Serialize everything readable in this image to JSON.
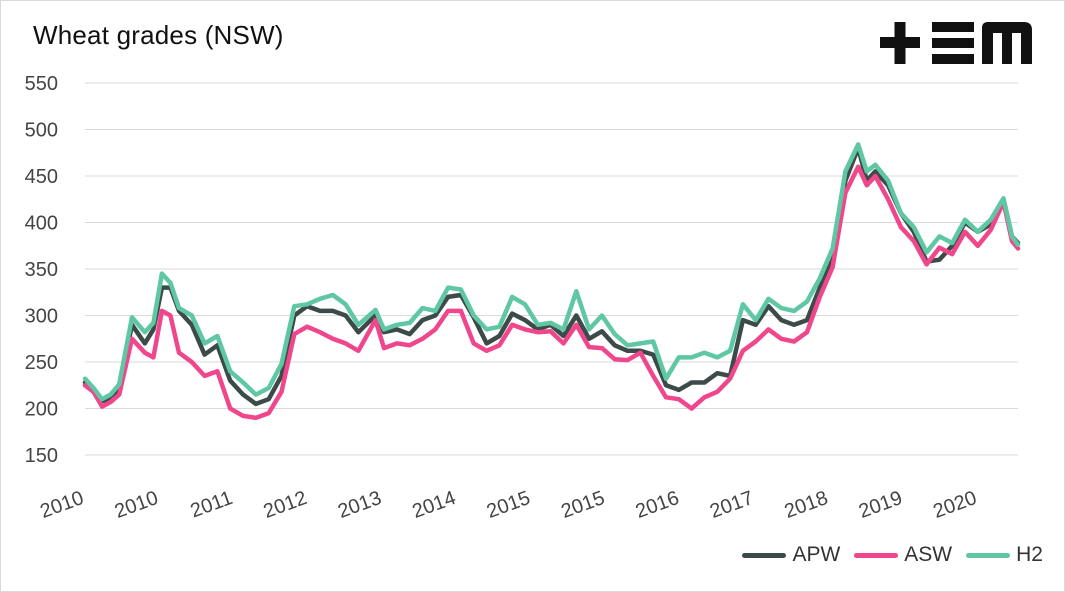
{
  "chart_data": {
    "type": "line",
    "title": "Wheat grades (NSW)",
    "xlabel": "",
    "ylabel": "",
    "ylim": [
      150,
      550
    ],
    "yticks": [
      150,
      200,
      250,
      300,
      350,
      400,
      450,
      500,
      550
    ],
    "xlim": [
      2010.0,
      2020.92
    ],
    "x_tick_labels": [
      "2010",
      "2010",
      "2011",
      "2012",
      "2013",
      "2014",
      "2015",
      "2015",
      "2016",
      "2017",
      "2018",
      "2019",
      "2020"
    ],
    "grid": "horizontal",
    "legend_position": "bottom-right",
    "series": [
      {
        "name": "APW",
        "color": "#3c4a4a",
        "points": [
          [
            2010.0,
            228
          ],
          [
            2010.1,
            220
          ],
          [
            2010.2,
            208
          ],
          [
            2010.3,
            210
          ],
          [
            2010.4,
            222
          ],
          [
            2010.55,
            290
          ],
          [
            2010.7,
            270
          ],
          [
            2010.8,
            285
          ],
          [
            2010.9,
            330
          ],
          [
            2011.0,
            330
          ],
          [
            2011.1,
            305
          ],
          [
            2011.25,
            290
          ],
          [
            2011.4,
            258
          ],
          [
            2011.55,
            268
          ],
          [
            2011.7,
            230
          ],
          [
            2011.85,
            215
          ],
          [
            2012.0,
            205
          ],
          [
            2012.15,
            210
          ],
          [
            2012.3,
            235
          ],
          [
            2012.45,
            300
          ],
          [
            2012.6,
            310
          ],
          [
            2012.75,
            305
          ],
          [
            2012.9,
            305
          ],
          [
            2013.05,
            300
          ],
          [
            2013.2,
            282
          ],
          [
            2013.4,
            300
          ],
          [
            2013.5,
            282
          ],
          [
            2013.65,
            285
          ],
          [
            2013.8,
            280
          ],
          [
            2013.95,
            295
          ],
          [
            2014.1,
            300
          ],
          [
            2014.25,
            320
          ],
          [
            2014.4,
            322
          ],
          [
            2014.55,
            298
          ],
          [
            2014.7,
            270
          ],
          [
            2014.85,
            278
          ],
          [
            2015.0,
            302
          ],
          [
            2015.15,
            295
          ],
          [
            2015.3,
            285
          ],
          [
            2015.45,
            290
          ],
          [
            2015.6,
            278
          ],
          [
            2015.75,
            300
          ],
          [
            2015.9,
            275
          ],
          [
            2016.05,
            283
          ],
          [
            2016.2,
            268
          ],
          [
            2016.35,
            262
          ],
          [
            2016.5,
            262
          ],
          [
            2016.65,
            258
          ],
          [
            2016.8,
            225
          ],
          [
            2016.95,
            220
          ],
          [
            2017.1,
            228
          ],
          [
            2017.25,
            228
          ],
          [
            2017.4,
            238
          ],
          [
            2017.55,
            235
          ],
          [
            2017.7,
            295
          ],
          [
            2017.85,
            290
          ],
          [
            2018.0,
            310
          ],
          [
            2018.15,
            295
          ],
          [
            2018.3,
            290
          ],
          [
            2018.45,
            295
          ],
          [
            2018.6,
            330
          ],
          [
            2018.75,
            360
          ],
          [
            2018.9,
            445
          ],
          [
            2019.05,
            480
          ],
          [
            2019.15,
            445
          ],
          [
            2019.25,
            455
          ],
          [
            2019.4,
            440
          ],
          [
            2019.55,
            410
          ],
          [
            2019.7,
            390
          ],
          [
            2019.85,
            358
          ],
          [
            2020.0,
            360
          ],
          [
            2020.15,
            375
          ],
          [
            2020.3,
            400
          ],
          [
            2020.45,
            390
          ],
          [
            2020.6,
            398
          ],
          [
            2020.75,
            425
          ],
          [
            2020.85,
            385
          ],
          [
            2020.92,
            378
          ]
        ]
      },
      {
        "name": "ASW",
        "color": "#f0468c",
        "points": [
          [
            2010.0,
            225
          ],
          [
            2010.1,
            218
          ],
          [
            2010.2,
            202
          ],
          [
            2010.3,
            207
          ],
          [
            2010.4,
            215
          ],
          [
            2010.55,
            275
          ],
          [
            2010.7,
            260
          ],
          [
            2010.8,
            255
          ],
          [
            2010.9,
            305
          ],
          [
            2011.0,
            300
          ],
          [
            2011.1,
            260
          ],
          [
            2011.25,
            250
          ],
          [
            2011.4,
            235
          ],
          [
            2011.55,
            240
          ],
          [
            2011.7,
            200
          ],
          [
            2011.85,
            192
          ],
          [
            2012.0,
            190
          ],
          [
            2012.15,
            195
          ],
          [
            2012.3,
            218
          ],
          [
            2012.45,
            280
          ],
          [
            2012.6,
            288
          ],
          [
            2012.75,
            282
          ],
          [
            2012.9,
            275
          ],
          [
            2013.05,
            270
          ],
          [
            2013.2,
            262
          ],
          [
            2013.4,
            295
          ],
          [
            2013.5,
            265
          ],
          [
            2013.65,
            270
          ],
          [
            2013.8,
            268
          ],
          [
            2013.95,
            275
          ],
          [
            2014.1,
            285
          ],
          [
            2014.25,
            305
          ],
          [
            2014.4,
            305
          ],
          [
            2014.55,
            270
          ],
          [
            2014.7,
            262
          ],
          [
            2014.85,
            268
          ],
          [
            2015.0,
            290
          ],
          [
            2015.15,
            285
          ],
          [
            2015.3,
            282
          ],
          [
            2015.45,
            283
          ],
          [
            2015.6,
            270
          ],
          [
            2015.75,
            290
          ],
          [
            2015.9,
            266
          ],
          [
            2016.05,
            265
          ],
          [
            2016.2,
            253
          ],
          [
            2016.35,
            252
          ],
          [
            2016.5,
            260
          ],
          [
            2016.65,
            235
          ],
          [
            2016.8,
            212
          ],
          [
            2016.95,
            210
          ],
          [
            2017.1,
            200
          ],
          [
            2017.25,
            212
          ],
          [
            2017.4,
            218
          ],
          [
            2017.55,
            232
          ],
          [
            2017.7,
            262
          ],
          [
            2017.85,
            272
          ],
          [
            2018.0,
            285
          ],
          [
            2018.15,
            275
          ],
          [
            2018.3,
            272
          ],
          [
            2018.45,
            282
          ],
          [
            2018.6,
            320
          ],
          [
            2018.75,
            352
          ],
          [
            2018.9,
            432
          ],
          [
            2019.05,
            460
          ],
          [
            2019.15,
            440
          ],
          [
            2019.25,
            450
          ],
          [
            2019.4,
            425
          ],
          [
            2019.55,
            395
          ],
          [
            2019.7,
            380
          ],
          [
            2019.85,
            355
          ],
          [
            2020.0,
            373
          ],
          [
            2020.15,
            366
          ],
          [
            2020.3,
            390
          ],
          [
            2020.45,
            375
          ],
          [
            2020.6,
            392
          ],
          [
            2020.75,
            422
          ],
          [
            2020.85,
            380
          ],
          [
            2020.92,
            372
          ]
        ]
      },
      {
        "name": "H2",
        "color": "#5fc7a3",
        "points": [
          [
            2010.0,
            232
          ],
          [
            2010.1,
            222
          ],
          [
            2010.2,
            210
          ],
          [
            2010.3,
            215
          ],
          [
            2010.4,
            226
          ],
          [
            2010.55,
            298
          ],
          [
            2010.7,
            282
          ],
          [
            2010.8,
            292
          ],
          [
            2010.9,
            345
          ],
          [
            2011.0,
            335
          ],
          [
            2011.1,
            308
          ],
          [
            2011.25,
            300
          ],
          [
            2011.4,
            270
          ],
          [
            2011.55,
            278
          ],
          [
            2011.7,
            240
          ],
          [
            2011.85,
            228
          ],
          [
            2012.0,
            215
          ],
          [
            2012.15,
            222
          ],
          [
            2012.3,
            248
          ],
          [
            2012.45,
            310
          ],
          [
            2012.6,
            312
          ],
          [
            2012.75,
            318
          ],
          [
            2012.9,
            322
          ],
          [
            2013.05,
            312
          ],
          [
            2013.2,
            290
          ],
          [
            2013.4,
            306
          ],
          [
            2013.5,
            285
          ],
          [
            2013.65,
            290
          ],
          [
            2013.8,
            292
          ],
          [
            2013.95,
            308
          ],
          [
            2014.1,
            305
          ],
          [
            2014.25,
            330
          ],
          [
            2014.4,
            328
          ],
          [
            2014.55,
            300
          ],
          [
            2014.7,
            285
          ],
          [
            2014.85,
            288
          ],
          [
            2015.0,
            320
          ],
          [
            2015.15,
            312
          ],
          [
            2015.3,
            290
          ],
          [
            2015.45,
            292
          ],
          [
            2015.6,
            285
          ],
          [
            2015.75,
            326
          ],
          [
            2015.9,
            285
          ],
          [
            2016.05,
            300
          ],
          [
            2016.2,
            280
          ],
          [
            2016.35,
            268
          ],
          [
            2016.5,
            270
          ],
          [
            2016.65,
            272
          ],
          [
            2016.8,
            232
          ],
          [
            2016.95,
            255
          ],
          [
            2017.1,
            255
          ],
          [
            2017.25,
            260
          ],
          [
            2017.4,
            255
          ],
          [
            2017.55,
            262
          ],
          [
            2017.7,
            312
          ],
          [
            2017.85,
            295
          ],
          [
            2018.0,
            318
          ],
          [
            2018.15,
            308
          ],
          [
            2018.3,
            305
          ],
          [
            2018.45,
            315
          ],
          [
            2018.6,
            340
          ],
          [
            2018.75,
            372
          ],
          [
            2018.9,
            455
          ],
          [
            2019.05,
            484
          ],
          [
            2019.15,
            455
          ],
          [
            2019.25,
            462
          ],
          [
            2019.4,
            445
          ],
          [
            2019.55,
            410
          ],
          [
            2019.7,
            395
          ],
          [
            2019.85,
            368
          ],
          [
            2020.0,
            385
          ],
          [
            2020.15,
            378
          ],
          [
            2020.3,
            403
          ],
          [
            2020.45,
            390
          ],
          [
            2020.6,
            403
          ],
          [
            2020.75,
            426
          ],
          [
            2020.85,
            385
          ],
          [
            2020.92,
            376
          ]
        ]
      }
    ]
  }
}
